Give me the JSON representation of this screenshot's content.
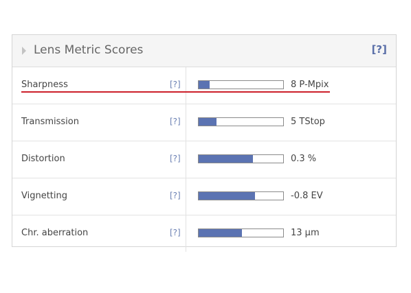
{
  "panel": {
    "title": "Lens Metric Scores",
    "help": "[?]"
  },
  "accent_color": "#5b73b2",
  "highlight_color": "#cc1f2a",
  "metrics": [
    {
      "name": "Sharpness",
      "help": "[?]",
      "value": "8 P-Mpix",
      "fill_fraction": 0.13
    },
    {
      "name": "Transmission",
      "help": "[?]",
      "value": "5 TStop",
      "fill_fraction": 0.21
    },
    {
      "name": "Distortion",
      "help": "[?]",
      "value": "0.3 %",
      "fill_fraction": 0.64
    },
    {
      "name": "Vignetting",
      "help": "[?]",
      "value": "-0.8 EV",
      "fill_fraction": 0.67
    },
    {
      "name": "Chr. aberration",
      "help": "[?]",
      "value": "13 µm",
      "fill_fraction": 0.51
    }
  ]
}
